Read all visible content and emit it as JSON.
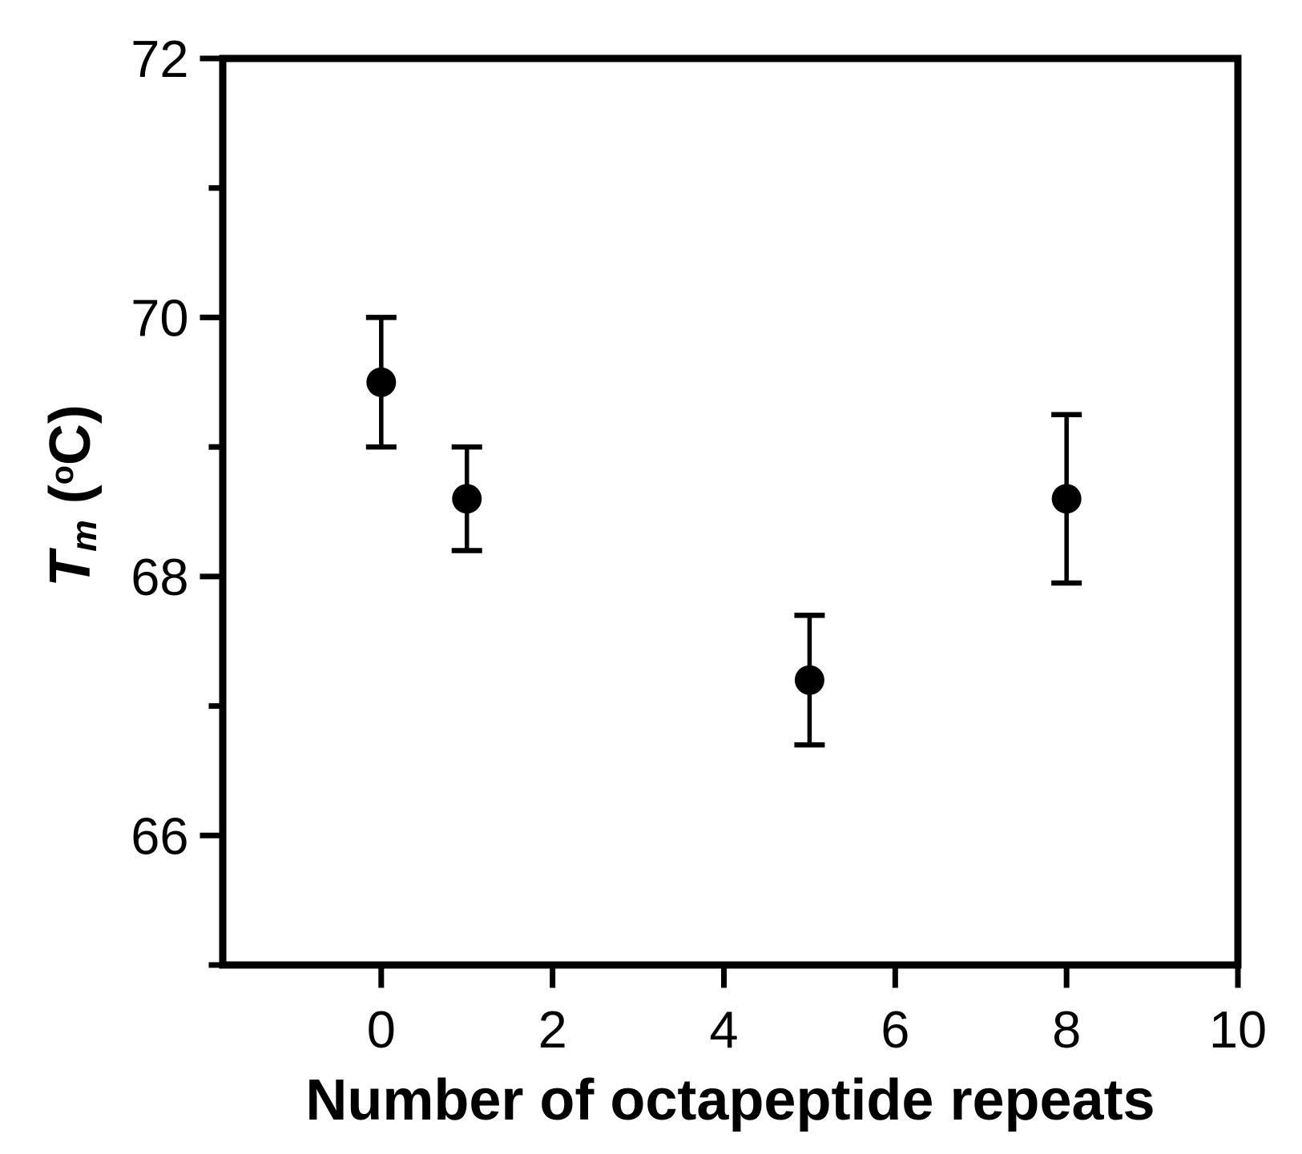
{
  "figure": {
    "background_color": "#ffffff",
    "ink_color": "#000000"
  },
  "chart_data": {
    "type": "scatter",
    "title": "",
    "xlabel": "Number of octapeptide repeats",
    "ylabel": "Tm (oC)",
    "x": [
      0,
      1,
      5,
      8
    ],
    "y": [
      69.5,
      68.6,
      67.2,
      68.6
    ],
    "y_err_up": [
      0.5,
      0.4,
      0.5,
      0.65
    ],
    "y_err_down": [
      0.5,
      0.4,
      0.5,
      0.65
    ],
    "xlim": [
      -1.85,
      10
    ],
    "ylim": [
      65,
      72
    ],
    "x_major_ticks": [
      0,
      2,
      4,
      6,
      8,
      10
    ],
    "x_tick_labels": [
      "0",
      "2",
      "4",
      "6",
      "8",
      "10"
    ],
    "y_major_ticks": [
      66,
      68,
      70,
      72
    ],
    "y_tick_labels": [
      "66",
      "68",
      "70",
      "72"
    ],
    "y_minor_ticks": [
      65,
      67,
      69,
      71
    ],
    "grid": false,
    "legend": false,
    "marker": "filled-circle",
    "error_bars": "vertical-with-caps"
  },
  "xlabel": {
    "text": "Number of octapeptide repeats"
  },
  "ylabel": {
    "t": "T",
    "m": "m",
    "open_paren": " (",
    "deg": "o",
    "c": "C)"
  }
}
